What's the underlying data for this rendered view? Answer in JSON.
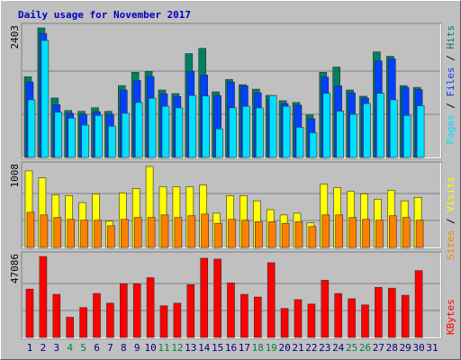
{
  "chart_data": [
    {
      "type": "bar",
      "title": "Daily usage for November 2017",
      "legend_separator": " / ",
      "ylim": [
        0,
        2403
      ],
      "yticks": [
        2403
      ],
      "series": [
        {
          "name": "Pages",
          "color": "#00e0ff",
          "values": [
            1070,
            2170,
            840,
            730,
            600,
            780,
            580,
            820,
            1020,
            1100,
            950,
            920,
            1150,
            1140,
            530,
            920,
            950,
            920,
            1150,
            950,
            560,
            460,
            1190,
            860,
            800,
            1000,
            1190,
            1070,
            780,
            960,
            null
          ]
        },
        {
          "name": "Files",
          "color": "#0040ff",
          "values": [
            1400,
            2300,
            980,
            820,
            800,
            850,
            800,
            1250,
            1430,
            1500,
            1180,
            1130,
            1600,
            1530,
            1150,
            1400,
            1330,
            1200,
            1080,
            1000,
            970,
            720,
            1490,
            1330,
            1200,
            1100,
            1790,
            1830,
            1300,
            1260,
            null
          ]
        },
        {
          "name": "Hits",
          "color": "#008060",
          "values": [
            1498,
            2403,
            1103,
            872,
            856,
            922,
            856,
            1333,
            1580,
            1597,
            1251,
            1185,
            1926,
            2024,
            1218,
            1448,
            1350,
            1267,
            1152,
            1053,
            1020,
            790,
            1580,
            1677,
            1251,
            1136,
            1958,
            1877,
            1333,
            1300,
            null
          ]
        }
      ]
    },
    {
      "type": "bar",
      "ylim": [
        0,
        1008
      ],
      "yticks": [
        1008
      ],
      "series": [
        {
          "name": "Sites",
          "color": "#ff8000",
          "values": [
            438,
            405,
            373,
            350,
            340,
            340,
            270,
            350,
            373,
            373,
            405,
            373,
            395,
            416,
            300,
            350,
            340,
            320,
            320,
            300,
            320,
            260,
            405,
            405,
            373,
            350,
            340,
            395,
            373,
            340,
            null
          ]
        },
        {
          "name": "Visits",
          "color": "#ffff00",
          "values": [
            953,
            866,
            657,
            646,
            559,
            668,
            329,
            679,
            734,
            1008,
            756,
            756,
            756,
            778,
            427,
            646,
            646,
            581,
            471,
            405,
            427,
            307,
            789,
            745,
            701,
            668,
            602,
            712,
            581,
            624,
            null
          ]
        }
      ]
    },
    {
      "type": "bar",
      "ylim": [
        0,
        47086
      ],
      "yticks": [
        47086
      ],
      "categories": [
        "1",
        "2",
        "3",
        "4",
        "5",
        "6",
        "7",
        "8",
        "9",
        "10",
        "11",
        "12",
        "13",
        "14",
        "15",
        "16",
        "17",
        "18",
        "19",
        "20",
        "21",
        "22",
        "23",
        "24",
        "25",
        "26",
        "27",
        "28",
        "29",
        "30",
        "31"
      ],
      "category_colors": [
        "#000080",
        "#000080",
        "#000080",
        "#008040",
        "#008040",
        "#000080",
        "#000080",
        "#000080",
        "#000080",
        "#000080",
        "#008040",
        "#008040",
        "#000080",
        "#000080",
        "#000080",
        "#000080",
        "#000080",
        "#008040",
        "#008040",
        "#000080",
        "#000080",
        "#000080",
        "#000080",
        "#000080",
        "#008040",
        "#008040",
        "#000080",
        "#000080",
        "#000080",
        "#000080",
        "#000080"
      ],
      "series": [
        {
          "name": "KBytes",
          "color": "#ff0000",
          "values": [
            28150,
            47086,
            25080,
            11770,
            17400,
            25590,
            19960,
            31220,
            31220,
            34800,
            18430,
            19960,
            30710,
            46060,
            45550,
            31730,
            25080,
            23540,
            43500,
            16890,
            22010,
            19450,
            33270,
            25590,
            22520,
            18940,
            29170,
            28660,
            24570,
            38900,
            null
          ]
        }
      ]
    }
  ]
}
